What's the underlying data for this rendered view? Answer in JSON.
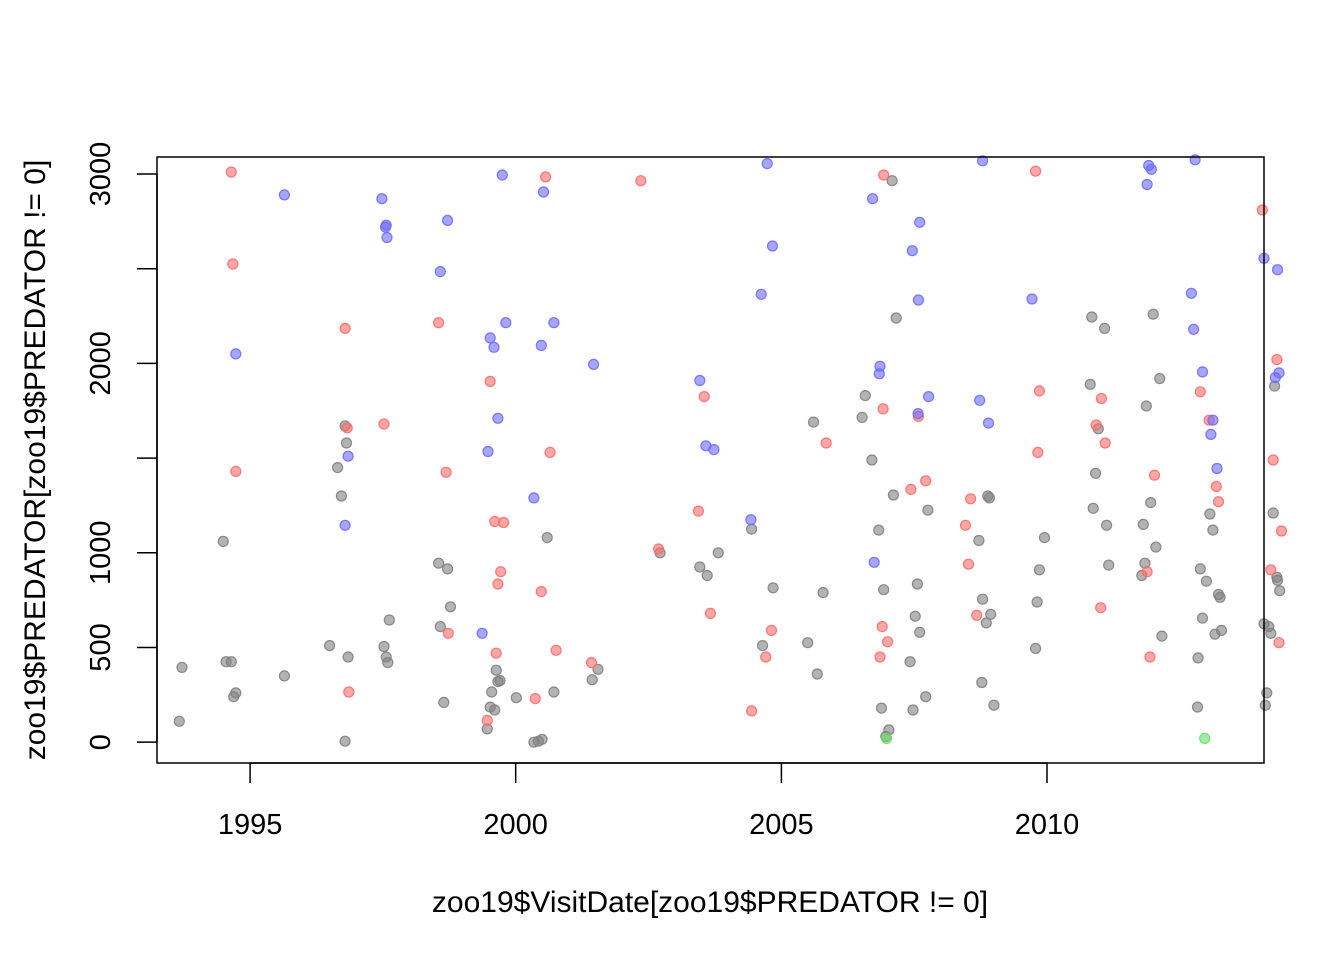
{
  "chart_data": {
    "type": "scatter",
    "title": "",
    "xlabel": "zoo19$VisitDate[zoo19$PREDATOR != 0]",
    "ylabel": "zoo19$PREDATOR[zoo19$PREDATOR != 0]",
    "xlim": [
      "1993-04-01",
      "2014-02-01"
    ],
    "ylim": [
      -110,
      3090
    ],
    "x_ticks": [
      {
        "value": "1995-01-01",
        "label": "1995"
      },
      {
        "value": "2000-01-01",
        "label": "2000"
      },
      {
        "value": "2005-01-01",
        "label": "2005"
      },
      {
        "value": "2010-01-01",
        "label": "2010"
      }
    ],
    "y_ticks": [
      {
        "value": 0,
        "label": "0"
      },
      {
        "value": 500,
        "label": "500"
      },
      {
        "value": 1000,
        "label": "1000"
      },
      {
        "value": 1500,
        "label": ""
      },
      {
        "value": 2000,
        "label": "2000"
      },
      {
        "value": 2500,
        "label": ""
      },
      {
        "value": 3000,
        "label": "3000"
      }
    ],
    "grid": false,
    "point_colors": {
      "gray": "#808080",
      "red": "#ff6b6b",
      "blue": "#6b6bff",
      "green": "#66e066"
    },
    "series": [
      {
        "color": "gray",
        "points": [
          [
            "1993-09-01",
            110
          ],
          [
            "1993-09-20",
            395
          ],
          [
            "1994-07-01",
            1060
          ],
          [
            "1994-07-20",
            425
          ],
          [
            "1994-08-25",
            425
          ],
          [
            "1994-09-10",
            240
          ],
          [
            "1994-09-25",
            260
          ],
          [
            "1995-08-25",
            350
          ],
          [
            "1996-07-01",
            510
          ],
          [
            "1996-08-25",
            1450
          ],
          [
            "1996-09-20",
            1300
          ],
          [
            "1996-10-15",
            5
          ],
          [
            "1996-10-15",
            1670
          ],
          [
            "1996-10-25",
            1580
          ],
          [
            "1996-11-05",
            450
          ],
          [
            "1997-07-10",
            505
          ],
          [
            "1997-07-25",
            450
          ],
          [
            "1997-08-05",
            420
          ],
          [
            "1997-08-15",
            645
          ],
          [
            "1998-07-20",
            945
          ],
          [
            "1998-08-01",
            610
          ],
          [
            "1998-08-25",
            210
          ],
          [
            "1998-09-20",
            915
          ],
          [
            "1998-10-10",
            715
          ],
          [
            "1999-06-20",
            70
          ],
          [
            "1999-07-10",
            185
          ],
          [
            "1999-07-20",
            265
          ],
          [
            "1999-08-10",
            170
          ],
          [
            "1999-08-20",
            380
          ],
          [
            "1999-09-01",
            320
          ],
          [
            "1999-09-15",
            325
          ],
          [
            "2000-01-05",
            235
          ],
          [
            "2000-05-05",
            0
          ],
          [
            "2000-06-05",
            5
          ],
          [
            "2000-07-01",
            15
          ],
          [
            "2000-08-05",
            1080
          ],
          [
            "2000-09-20",
            265
          ],
          [
            "2001-06-10",
            330
          ],
          [
            "2001-07-20",
            385
          ],
          [
            "2002-09-20",
            1000
          ],
          [
            "2003-06-20",
            925
          ],
          [
            "2003-08-10",
            880
          ],
          [
            "2003-10-25",
            1000
          ],
          [
            "2004-06-10",
            1125
          ],
          [
            "2004-08-25",
            510
          ],
          [
            "2004-11-05",
            815
          ],
          [
            "2005-07-01",
            525
          ],
          [
            "2005-08-10",
            1690
          ],
          [
            "2005-09-05",
            360
          ],
          [
            "2005-10-15",
            790
          ],
          [
            "2006-07-10",
            1715
          ],
          [
            "2006-08-01",
            1830
          ],
          [
            "2006-09-15",
            1490
          ],
          [
            "2006-11-01",
            1120
          ],
          [
            "2006-11-20",
            180
          ],
          [
            "2006-12-05",
            805
          ],
          [
            "2006-12-20",
            30
          ],
          [
            "2007-01-10",
            65
          ],
          [
            "2007-02-01",
            2965
          ],
          [
            "2007-02-10",
            1305
          ],
          [
            "2007-03-01",
            2240
          ],
          [
            "2007-06-05",
            425
          ],
          [
            "2007-06-25",
            170
          ],
          [
            "2007-07-10",
            665
          ],
          [
            "2007-07-25",
            835
          ],
          [
            "2007-08-10",
            580
          ],
          [
            "2007-09-20",
            240
          ],
          [
            "2007-10-05",
            1225
          ],
          [
            "2008-09-20",
            1065
          ],
          [
            "2008-10-10",
            315
          ],
          [
            "2008-10-15",
            755
          ],
          [
            "2008-11-10",
            630
          ],
          [
            "2008-11-20",
            1300
          ],
          [
            "2008-12-01",
            1290
          ],
          [
            "2008-12-10",
            675
          ],
          [
            "2009-01-01",
            195
          ],
          [
            "2009-10-15",
            495
          ],
          [
            "2009-10-25",
            740
          ],
          [
            "2009-11-10",
            910
          ],
          [
            "2009-12-15",
            1080
          ],
          [
            "2010-10-25",
            1890
          ],
          [
            "2010-11-05",
            2245
          ],
          [
            "2010-11-15",
            1235
          ],
          [
            "2010-12-01",
            1420
          ],
          [
            "2010-12-20",
            1655
          ],
          [
            "2011-02-01",
            2185
          ],
          [
            "2011-02-15",
            1145
          ],
          [
            "2011-03-01",
            935
          ],
          [
            "2011-10-15",
            880
          ],
          [
            "2011-10-25",
            1150
          ],
          [
            "2011-11-05",
            945
          ],
          [
            "2011-11-15",
            1775
          ],
          [
            "2011-12-15",
            1265
          ],
          [
            "2012-01-01",
            2260
          ],
          [
            "2012-01-20",
            1030
          ],
          [
            "2012-02-15",
            1920
          ],
          [
            "2012-03-01",
            560
          ],
          [
            "2012-11-01",
            185
          ],
          [
            "2012-11-05",
            445
          ],
          [
            "2012-11-20",
            915
          ],
          [
            "2012-12-05",
            655
          ],
          [
            "2013-01-01",
            850
          ],
          [
            "2013-01-25",
            1205
          ],
          [
            "2013-02-15",
            1120
          ],
          [
            "2013-03-01",
            570
          ],
          [
            "2013-03-25",
            780
          ],
          [
            "2013-04-05",
            765
          ],
          [
            "2013-04-15",
            590
          ],
          [
            "2014-02-01",
            625
          ],
          [
            "2014-02-10",
            195
          ],
          [
            "2014-02-20",
            260
          ],
          [
            "2014-03-05",
            610
          ],
          [
            "2014-03-20",
            575
          ],
          [
            "2014-04-05",
            1210
          ],
          [
            "2014-04-15",
            1880
          ],
          [
            "2014-05-01",
            870
          ],
          [
            "2014-05-05",
            855
          ],
          [
            "2014-05-20",
            800
          ]
        ]
      },
      {
        "color": "red",
        "points": [
          [
            "1994-08-25",
            3010
          ],
          [
            "1994-09-05",
            2525
          ],
          [
            "1994-09-25",
            1430
          ],
          [
            "1996-10-15",
            2185
          ],
          [
            "1996-10-30",
            1660
          ],
          [
            "1996-11-10",
            265
          ],
          [
            "1997-07-10",
            1680
          ],
          [
            "1998-07-20",
            2215
          ],
          [
            "1998-09-10",
            1425
          ],
          [
            "1998-09-25",
            575
          ],
          [
            "1999-06-20",
            115
          ],
          [
            "1999-07-10",
            1905
          ],
          [
            "1999-08-10",
            1165
          ],
          [
            "1999-08-20",
            470
          ],
          [
            "1999-09-01",
            835
          ],
          [
            "1999-09-20",
            900
          ],
          [
            "1999-10-10",
            1160
          ],
          [
            "2000-05-15",
            230
          ],
          [
            "2000-06-25",
            795
          ],
          [
            "2000-07-25",
            2985
          ],
          [
            "2000-08-25",
            1530
          ],
          [
            "2000-10-05",
            485
          ],
          [
            "2001-06-05",
            420
          ],
          [
            "2002-05-10",
            2965
          ],
          [
            "2002-09-10",
            1020
          ],
          [
            "2003-06-10",
            1220
          ],
          [
            "2003-07-20",
            1825
          ],
          [
            "2003-09-01",
            680
          ],
          [
            "2004-06-10",
            165
          ],
          [
            "2004-09-15",
            450
          ],
          [
            "2004-10-25",
            590
          ],
          [
            "2005-11-05",
            1580
          ],
          [
            "2006-11-10",
            450
          ],
          [
            "2006-11-25",
            610
          ],
          [
            "2006-12-01",
            1760
          ],
          [
            "2006-12-05",
            2995
          ],
          [
            "2007-01-01",
            530
          ],
          [
            "2007-06-10",
            1335
          ],
          [
            "2007-08-01",
            1720
          ],
          [
            "2007-09-20",
            1380
          ],
          [
            "2008-06-20",
            1145
          ],
          [
            "2008-07-10",
            940
          ],
          [
            "2008-07-25",
            1285
          ],
          [
            "2008-09-05",
            670
          ],
          [
            "2009-10-15",
            3015
          ],
          [
            "2009-10-30",
            1530
          ],
          [
            "2009-11-10",
            1855
          ],
          [
            "2010-12-05",
            1675
          ],
          [
            "2011-01-05",
            710
          ],
          [
            "2011-01-10",
            1815
          ],
          [
            "2011-02-05",
            1580
          ],
          [
            "2011-11-20",
            900
          ],
          [
            "2011-12-10",
            450
          ],
          [
            "2012-01-10",
            1410
          ],
          [
            "2012-11-20",
            1850
          ],
          [
            "2013-01-20",
            1700
          ],
          [
            "2013-03-10",
            1350
          ],
          [
            "2013-03-25",
            1270
          ],
          [
            "2014-01-20",
            2810
          ],
          [
            "2014-03-20",
            910
          ],
          [
            "2014-04-05",
            1490
          ],
          [
            "2014-05-01",
            2020
          ],
          [
            "2014-05-15",
            525
          ],
          [
            "2014-06-01",
            1115
          ]
        ]
      },
      {
        "color": "blue",
        "points": [
          [
            "1994-09-25",
            2050
          ],
          [
            "1995-08-25",
            2890
          ],
          [
            "1996-10-15",
            1145
          ],
          [
            "1996-11-05",
            1510
          ],
          [
            "1997-06-25",
            2870
          ],
          [
            "1997-07-20",
            2720
          ],
          [
            "1997-07-25",
            2730
          ],
          [
            "1997-07-30",
            2665
          ],
          [
            "1998-08-01",
            2485
          ],
          [
            "1998-09-20",
            2755
          ],
          [
            "1999-05-15",
            575
          ],
          [
            "1999-06-25",
            1535
          ],
          [
            "1999-07-10",
            2135
          ],
          [
            "1999-08-05",
            2085
          ],
          [
            "1999-09-01",
            1710
          ],
          [
            "1999-10-01",
            2995
          ],
          [
            "1999-10-25",
            2215
          ],
          [
            "2000-05-05",
            1290
          ],
          [
            "2000-06-25",
            2095
          ],
          [
            "2000-07-10",
            2905
          ],
          [
            "2000-09-20",
            2215
          ],
          [
            "2001-06-20",
            1995
          ],
          [
            "2003-06-20",
            1910
          ],
          [
            "2003-08-01",
            1565
          ],
          [
            "2003-09-25",
            1545
          ],
          [
            "2004-06-05",
            1175
          ],
          [
            "2004-08-15",
            2365
          ],
          [
            "2004-09-25",
            3055
          ],
          [
            "2004-11-01",
            2620
          ],
          [
            "2006-09-20",
            2870
          ],
          [
            "2006-10-01",
            950
          ],
          [
            "2006-11-05",
            1945
          ],
          [
            "2006-11-10",
            1985
          ],
          [
            "2007-06-20",
            2595
          ],
          [
            "2007-07-30",
            1735
          ],
          [
            "2007-08-01",
            2335
          ],
          [
            "2007-08-10",
            2745
          ],
          [
            "2007-10-10",
            1825
          ],
          [
            "2008-09-25",
            1805
          ],
          [
            "2008-10-15",
            3070
          ],
          [
            "2008-11-25",
            1685
          ],
          [
            "2009-09-20",
            2340
          ],
          [
            "2011-11-20",
            2945
          ],
          [
            "2011-12-01",
            3045
          ],
          [
            "2011-12-20",
            3025
          ],
          [
            "2012-09-20",
            2370
          ],
          [
            "2012-10-05",
            2180
          ],
          [
            "2012-10-15",
            3075
          ],
          [
            "2012-12-05",
            1955
          ],
          [
            "2013-02-01",
            1625
          ],
          [
            "2013-02-15",
            1700
          ],
          [
            "2013-03-15",
            1445
          ],
          [
            "2014-02-01",
            2555
          ],
          [
            "2014-04-20",
            1925
          ],
          [
            "2014-05-05",
            2495
          ],
          [
            "2014-05-15",
            1950
          ]
        ]
      },
      {
        "color": "green",
        "points": [
          [
            "2006-12-25",
            20
          ],
          [
            "2012-12-20",
            20
          ]
        ]
      }
    ]
  }
}
